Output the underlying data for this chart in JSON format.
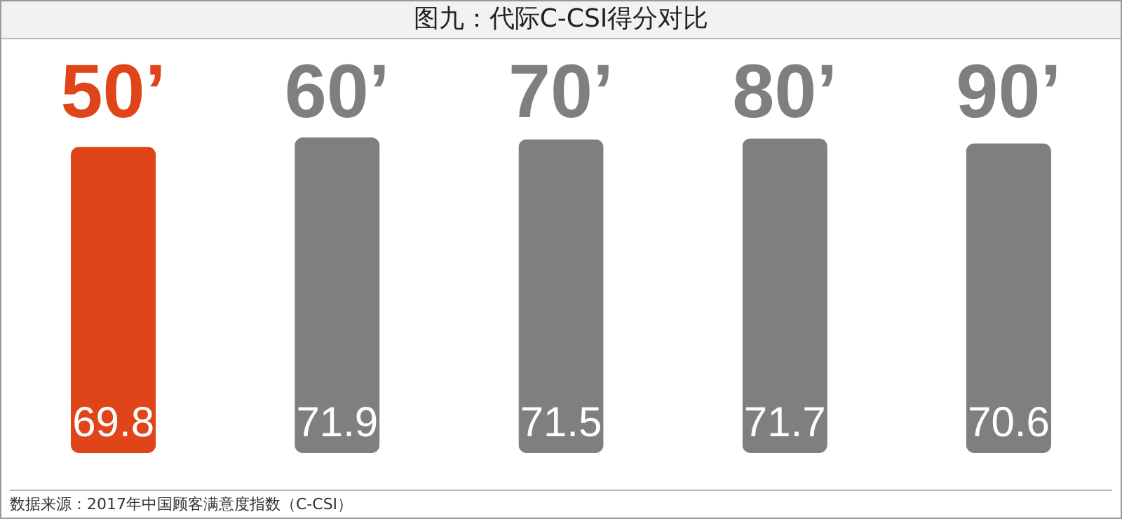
{
  "chart_data": {
    "type": "bar",
    "title": "图九：代际C-CSI得分对比",
    "categories": [
      "50’",
      "60’",
      "70’",
      "80’",
      "90’"
    ],
    "values": [
      69.8,
      71.9,
      71.5,
      71.7,
      70.6
    ],
    "colors": [
      "#e04419",
      "#7f7f7f",
      "#7f7f7f",
      "#7f7f7f",
      "#7f7f7f"
    ],
    "data_labels": true,
    "tick_labels": "x",
    "grid": false,
    "annotations": [
      "数据来源：2017年中国顾客满意度指数（C-CSI）"
    ]
  }
}
